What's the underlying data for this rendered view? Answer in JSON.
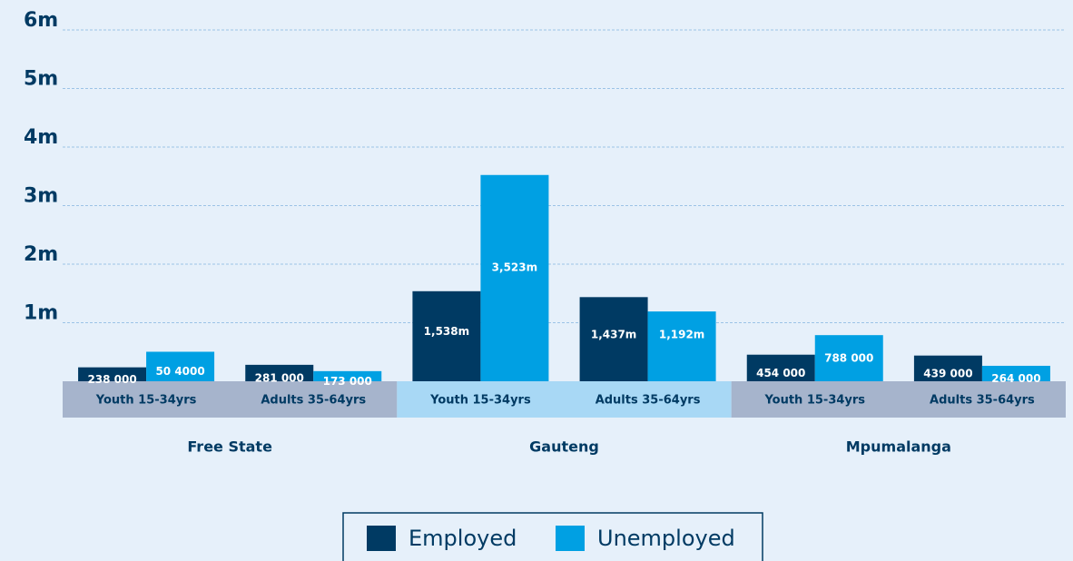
{
  "chart_data": {
    "type": "bar",
    "groups": [
      "Free State",
      "Gauteng",
      "Mpumalanga"
    ],
    "categories": [
      "Youth 15-34yrs",
      "Adults 35-64yrs",
      "Youth 15-34yrs",
      "Adults 35-64yrs",
      "Youth 15-34yrs",
      "Adults 35-64yrs"
    ],
    "series": [
      {
        "name": "Employed",
        "color": "#003a63",
        "values": [
          238000,
          281000,
          1538000,
          1437000,
          454000,
          439000
        ],
        "value_labels": [
          "238 000",
          "281 000",
          "1,538m",
          "1,437m",
          "454 000",
          "439 000"
        ]
      },
      {
        "name": "Unemployed",
        "color": "#00a0e3",
        "values": [
          504000,
          173000,
          3523000,
          1192000,
          788000,
          264000
        ],
        "value_labels": [
          "50 4000",
          "173 000",
          "3,523m",
          "1,192m",
          "788 000",
          "264 000"
        ]
      }
    ],
    "ylim": [
      0,
      6000000
    ],
    "yticks": [
      {
        "value": 1000000,
        "label": "1m"
      },
      {
        "value": 2000000,
        "label": "2m"
      },
      {
        "value": 3000000,
        "label": "3m"
      },
      {
        "value": 4000000,
        "label": "4m"
      },
      {
        "value": 5000000,
        "label": "5m"
      },
      {
        "value": 6000000,
        "label": "6m"
      }
    ],
    "grid": true,
    "legend": "bottom"
  }
}
